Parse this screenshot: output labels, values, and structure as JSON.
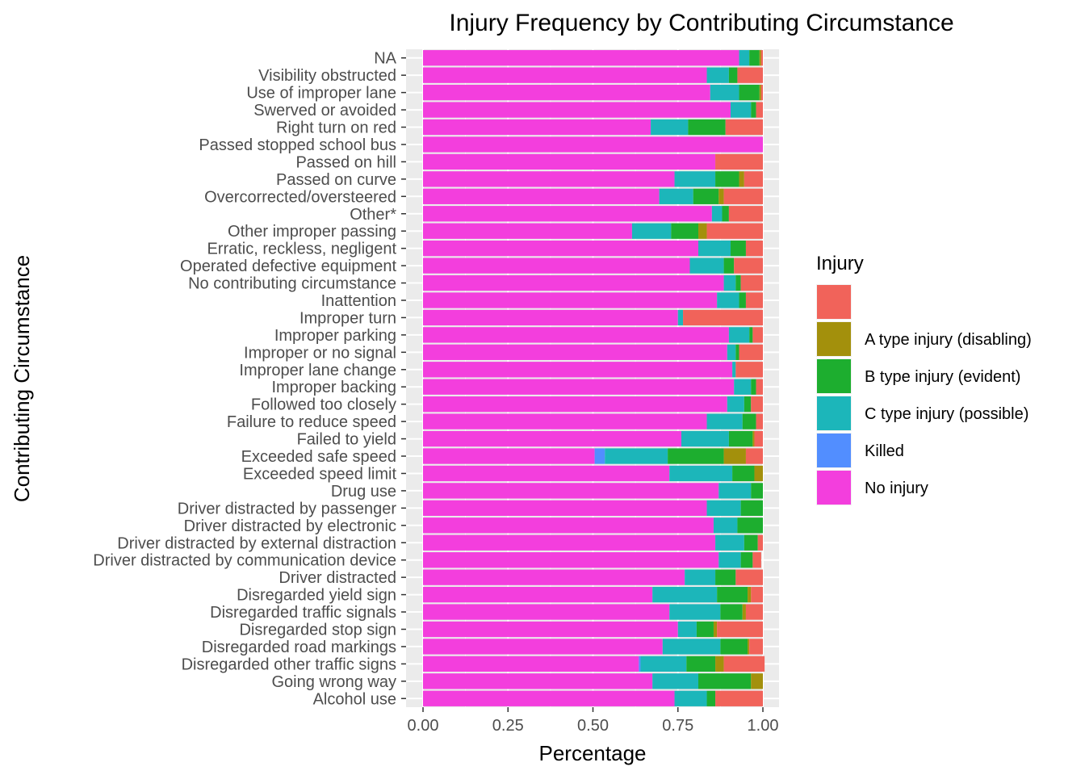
{
  "chart_data": {
    "type": "bar",
    "orientation": "horizontal",
    "stacked": true,
    "title": "Injury Frequency by Contributing Circumstance",
    "xlabel": "Percentage",
    "ylabel": "Contributing Circumstance",
    "xlim": [
      0,
      1
    ],
    "x_ticks": [
      "0.00",
      "0.25",
      "0.50",
      "0.75",
      "1.00"
    ],
    "grid": true,
    "legend_position": "right",
    "legend_title": "Injury",
    "categories": [
      "Alcohol use",
      "Going wrong way",
      "Disregarded other traffic signs",
      "Disregarded road markings",
      "Disregarded stop sign",
      "Disregarded traffic signals",
      "Disregarded yield sign",
      "Driver distracted",
      "Driver distracted by communication device",
      "Driver distracted by external distraction",
      "Driver distracted by electronic",
      "Driver distracted by passenger",
      "Drug use",
      "Exceeded speed limit",
      "Exceeded safe speed",
      "Failed to yield",
      "Failure to reduce speed",
      "Followed too closely",
      "Improper backing",
      "Improper lane change",
      "Improper or no signal",
      "Improper parking",
      "Improper turn",
      "Inattention",
      "No contributing circumstance",
      "Operated defective equipment",
      "Erratic, reckless, negligent",
      "Other improper passing",
      "Other*",
      "Overcorrected/oversteered",
      "Passed on curve",
      "Passed on hill",
      "Passed stopped school bus",
      "Right turn on red",
      "Swerved or avoided",
      "Use of improper lane",
      "Visibility obstructed",
      "NA"
    ],
    "series": [
      {
        "name": "No injury",
        "color": "#F33EDD",
        "values": [
          0.74,
          0.675,
          0.635,
          0.705,
          0.75,
          0.725,
          0.675,
          0.77,
          0.87,
          0.86,
          0.855,
          0.835,
          0.87,
          0.725,
          0.505,
          0.76,
          0.835,
          0.895,
          0.915,
          0.91,
          0.895,
          0.9,
          0.75,
          0.865,
          0.885,
          0.785,
          0.81,
          0.615,
          0.85,
          0.695,
          0.74,
          0.86,
          1.0,
          0.67,
          0.905,
          0.845,
          0.835,
          0.93
        ]
      },
      {
        "name": "Killed",
        "color": "#528EFF",
        "values": [
          0.0,
          0.0,
          0.005,
          0.0,
          0.0,
          0.0,
          0.0,
          0.0,
          0.0,
          0.0,
          0.0,
          0.0,
          0.0,
          0.0,
          0.03,
          0.0,
          0.0,
          0.0,
          0.0,
          0.0,
          0.0,
          0.0,
          0.0,
          0.0,
          0.0,
          0.0,
          0.0,
          0.0,
          0.0,
          0.0,
          0.0,
          0.0,
          0.0,
          0.0,
          0.0,
          0.0,
          0.0,
          0.0
        ]
      },
      {
        "name": "C type injury (possible)",
        "color": "#1CB6BA",
        "values": [
          0.095,
          0.135,
          0.135,
          0.17,
          0.055,
          0.15,
          0.19,
          0.09,
          0.065,
          0.085,
          0.07,
          0.1,
          0.095,
          0.185,
          0.185,
          0.14,
          0.105,
          0.05,
          0.05,
          0.01,
          0.025,
          0.06,
          0.015,
          0.065,
          0.035,
          0.1,
          0.095,
          0.115,
          0.03,
          0.1,
          0.12,
          0.0,
          0.0,
          0.11,
          0.06,
          0.085,
          0.065,
          0.03
        ]
      },
      {
        "name": "B type injury (evident)",
        "color": "#1DAE2F",
        "values": [
          0.025,
          0.155,
          0.085,
          0.08,
          0.05,
          0.065,
          0.09,
          0.06,
          0.035,
          0.04,
          0.075,
          0.065,
          0.035,
          0.065,
          0.165,
          0.07,
          0.04,
          0.02,
          0.015,
          0.0,
          0.01,
          0.01,
          0.0,
          0.02,
          0.015,
          0.03,
          0.045,
          0.08,
          0.02,
          0.075,
          0.07,
          0.0,
          0.0,
          0.11,
          0.015,
          0.06,
          0.025,
          0.03
        ]
      },
      {
        "name": "A type injury (disabling)",
        "color": "#A3900C",
        "values": [
          0.0,
          0.035,
          0.025,
          0.005,
          0.01,
          0.01,
          0.01,
          0.0,
          0.0,
          0.0,
          0.0,
          0.0,
          0.0,
          0.025,
          0.065,
          0.005,
          0.0,
          0.0,
          0.0,
          0.0,
          0.0,
          0.0,
          0.0,
          0.0,
          0.0,
          0.0,
          0.0,
          0.025,
          0.0,
          0.015,
          0.015,
          0.0,
          0.0,
          0.0,
          0.0,
          0.005,
          0.0,
          0.005
        ]
      },
      {
        "name": "",
        "color": "#F1635A",
        "values": [
          0.14,
          0.0,
          0.12,
          0.04,
          0.135,
          0.05,
          0.035,
          0.08,
          0.025,
          0.015,
          0.0,
          0.0,
          0.0,
          0.0,
          0.05,
          0.025,
          0.02,
          0.035,
          0.02,
          0.08,
          0.07,
          0.03,
          0.235,
          0.05,
          0.065,
          0.085,
          0.05,
          0.165,
          0.1,
          0.115,
          0.055,
          0.14,
          0.0,
          0.11,
          0.02,
          0.005,
          0.075,
          0.005
        ]
      }
    ],
    "legend_order": [
      "",
      "A type injury (disabling)",
      "B type injury (evident)",
      "C type injury (possible)",
      "Killed",
      "No injury"
    ]
  }
}
